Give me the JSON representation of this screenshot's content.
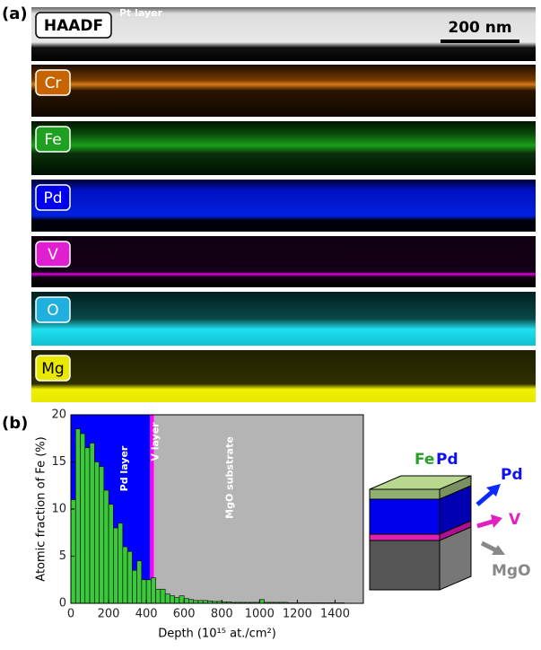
{
  "panel_a": {
    "label": "(a)",
    "maps": [
      {
        "name": "HAADF",
        "annotation": "Pt layer",
        "scale": "200 nm"
      },
      {
        "name": "Cr"
      },
      {
        "name": "Fe"
      },
      {
        "name": "Pd"
      },
      {
        "name": "V"
      },
      {
        "name": "O"
      },
      {
        "name": "Mg"
      }
    ]
  },
  "panel_b": {
    "label": "(b)"
  },
  "chart_data": {
    "type": "histogram",
    "xlabel": "Depth (10¹⁵ at./cm²)",
    "ylabel": "Atomic fraction of Fe (%)",
    "bins": [
      0,
      25,
      50,
      75,
      100,
      125,
      150,
      175,
      200,
      225,
      250,
      275,
      300,
      325,
      350,
      375,
      400,
      425,
      450,
      475,
      500,
      525,
      550,
      575,
      600,
      625,
      650,
      675,
      700,
      725,
      750,
      775,
      800,
      825,
      850,
      875,
      900,
      925,
      950,
      975,
      1000,
      1025,
      1050,
      1075,
      1100,
      1125,
      1150,
      1175,
      1200,
      1225,
      1250,
      1275,
      1300,
      1325,
      1350,
      1375,
      1400,
      1425,
      1450
    ],
    "counts": [
      11,
      18.5,
      18,
      16.5,
      17,
      15,
      14.5,
      12,
      10.5,
      8,
      8.5,
      6,
      5.5,
      3.5,
      4.5,
      2.5,
      2.5,
      2.7,
      1.5,
      1.5,
      1,
      0.8,
      0.6,
      0.8,
      0.5,
      0.4,
      0.3,
      0.3,
      0.3,
      0.25,
      0.2,
      0.2,
      0.15,
      0.15,
      0.1,
      0.1,
      0.1,
      0.1,
      0.1,
      0.1,
      0.4,
      0.1,
      0.1,
      0.1,
      0.1,
      0.1,
      0.05,
      0.05,
      0.05,
      0.05,
      0.05,
      0.05,
      0.05,
      0.05,
      0.05,
      0.05,
      0.05,
      0.05
    ],
    "color": "#3cc83c",
    "regions": [
      {
        "label": "Pd layer",
        "start": 0,
        "end": 420,
        "color": "#0000ff"
      },
      {
        "label": "V layer",
        "start": 420,
        "end": 440,
        "color": "#ff00ff"
      },
      {
        "label": "MgO substrate",
        "start": 440,
        "end": 1550,
        "color": "#b4b4b4"
      }
    ],
    "xlim": [
      0,
      1550
    ],
    "ylim": [
      0,
      20
    ],
    "xticks": [
      0,
      200,
      400,
      600,
      800,
      1000,
      1200,
      1400
    ],
    "yticks": [
      0,
      5,
      10,
      15,
      20
    ]
  },
  "diagram": {
    "film_fe": "Fe",
    "film_pd": "Pd",
    "layers": [
      "Pd",
      "V",
      "MgO"
    ]
  }
}
